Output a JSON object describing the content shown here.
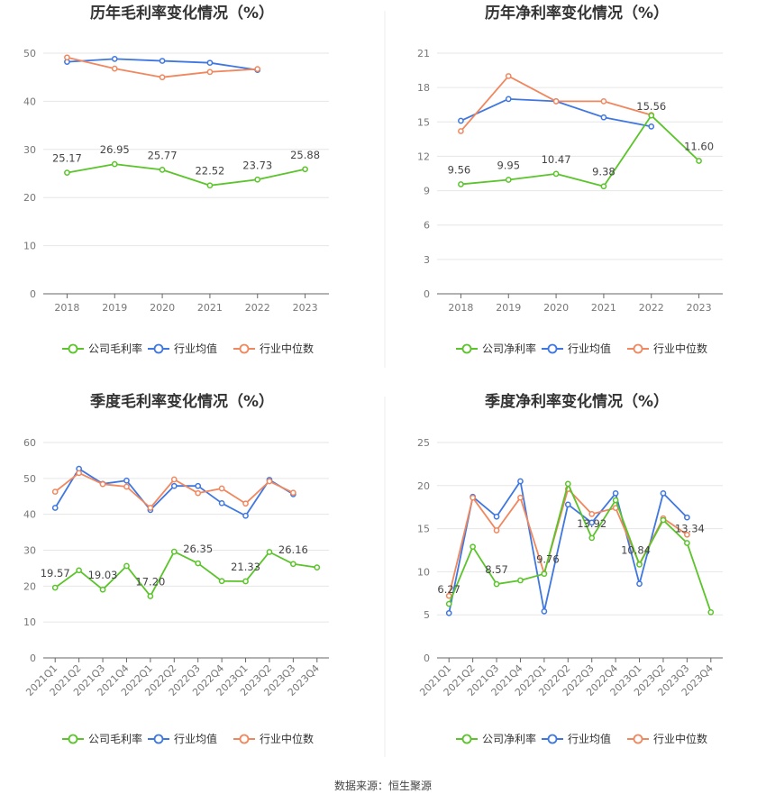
{
  "source_text": "数据来源：恒生聚源",
  "colors": {
    "company": "#5ac42a",
    "industry_avg": "#3f77e0",
    "industry_median": "#f0875e"
  },
  "chart_data": [
    {
      "type": "line",
      "title": "历年毛利率变化情况（%）",
      "categories": [
        "2018",
        "2019",
        "2020",
        "2021",
        "2022",
        "2023"
      ],
      "ylim": [
        0,
        50
      ],
      "yticks": [
        0,
        10,
        20,
        30,
        40,
        50
      ],
      "grid": true,
      "legend": [
        "公司毛利率",
        "行业均值",
        "行业中位数"
      ],
      "series": [
        {
          "name": "公司毛利率",
          "role": "company",
          "values": [
            25.17,
            26.95,
            25.77,
            22.52,
            23.73,
            25.88
          ],
          "labels": [
            "25.17",
            "26.95",
            "25.77",
            "22.52",
            "23.73",
            "25.88"
          ]
        },
        {
          "name": "行业均值",
          "role": "avg",
          "values": [
            48.2,
            48.8,
            48.4,
            48.0,
            46.5,
            null
          ]
        },
        {
          "name": "行业中位数",
          "role": "median",
          "values": [
            49.1,
            46.8,
            45.0,
            46.1,
            46.7,
            null
          ]
        }
      ]
    },
    {
      "type": "line",
      "title": "历年净利率变化情况（%）",
      "categories": [
        "2018",
        "2019",
        "2020",
        "2021",
        "2022",
        "2023"
      ],
      "ylim": [
        0,
        21
      ],
      "yticks": [
        0,
        3,
        6,
        9,
        12,
        15,
        18,
        21
      ],
      "grid": true,
      "legend": [
        "公司净利率",
        "行业均值",
        "行业中位数"
      ],
      "series": [
        {
          "name": "公司净利率",
          "role": "company",
          "values": [
            9.56,
            9.95,
            10.47,
            9.38,
            15.56,
            11.6
          ],
          "labels": [
            "9.56",
            "9.95",
            "10.47",
            "9.38",
            "15.56",
            "11.60"
          ]
        },
        {
          "name": "行业均值",
          "role": "avg",
          "values": [
            15.1,
            17.0,
            16.8,
            15.4,
            14.6,
            null
          ]
        },
        {
          "name": "行业中位数",
          "role": "median",
          "values": [
            14.2,
            19.0,
            16.8,
            16.8,
            15.6,
            null
          ]
        }
      ]
    },
    {
      "type": "line",
      "title": "季度毛利率变化情况（%）",
      "categories": [
        "2021Q1",
        "2021Q2",
        "2021Q3",
        "2021Q4",
        "2022Q1",
        "2022Q2",
        "2022Q3",
        "2022Q4",
        "2023Q1",
        "2023Q2",
        "2023Q3",
        "2023Q4"
      ],
      "ylim": [
        0,
        60
      ],
      "yticks": [
        0,
        10,
        20,
        30,
        40,
        50,
        60
      ],
      "grid": true,
      "legend": [
        "公司毛利率",
        "行业均值",
        "行业中位数"
      ],
      "series": [
        {
          "name": "公司毛利率",
          "role": "company",
          "values": [
            19.57,
            24.4,
            19.03,
            25.6,
            17.2,
            29.6,
            26.35,
            21.4,
            21.33,
            29.5,
            26.16,
            25.2
          ],
          "labels": [
            "19.57",
            "",
            "19.03",
            "",
            "17.20",
            "",
            "26.35",
            "",
            "21.33",
            "",
            "26.16",
            ""
          ]
        },
        {
          "name": "行业均值",
          "role": "avg",
          "values": [
            41.8,
            52.7,
            48.5,
            49.4,
            41.2,
            47.9,
            47.9,
            43.1,
            39.6,
            49.6,
            45.6,
            null
          ]
        },
        {
          "name": "行业中位数",
          "role": "median",
          "values": [
            46.3,
            51.5,
            48.4,
            47.7,
            41.8,
            49.7,
            45.9,
            47.2,
            43.0,
            49.2,
            46.0,
            null
          ]
        }
      ]
    },
    {
      "type": "line",
      "title": "季度净利率变化情况（%）",
      "categories": [
        "2021Q1",
        "2021Q2",
        "2021Q3",
        "2021Q4",
        "2022Q1",
        "2022Q2",
        "2022Q3",
        "2022Q4",
        "2023Q1",
        "2023Q2",
        "2023Q3",
        "2023Q4"
      ],
      "ylim": [
        0,
        25
      ],
      "yticks": [
        0,
        5,
        10,
        15,
        20,
        25
      ],
      "grid": true,
      "legend": [
        "公司净利率",
        "行业均值",
        "行业中位数"
      ],
      "series": [
        {
          "name": "公司净利率",
          "role": "company",
          "values": [
            6.27,
            12.9,
            8.57,
            9.0,
            9.76,
            20.2,
            13.92,
            18.3,
            10.84,
            16.0,
            13.34,
            5.3
          ],
          "labels": [
            "6.27",
            "",
            "8.57",
            "",
            "9.76",
            "",
            "13.92",
            "",
            "10.84",
            "",
            "13.34",
            ""
          ]
        },
        {
          "name": "行业均值",
          "role": "avg",
          "values": [
            5.2,
            18.7,
            16.4,
            20.5,
            5.4,
            17.8,
            15.7,
            19.1,
            8.6,
            19.1,
            16.3,
            null
          ]
        },
        {
          "name": "行业中位数",
          "role": "median",
          "values": [
            7.2,
            18.6,
            14.8,
            18.6,
            9.8,
            19.6,
            16.7,
            17.4,
            10.9,
            16.2,
            14.3,
            null
          ]
        }
      ]
    }
  ]
}
